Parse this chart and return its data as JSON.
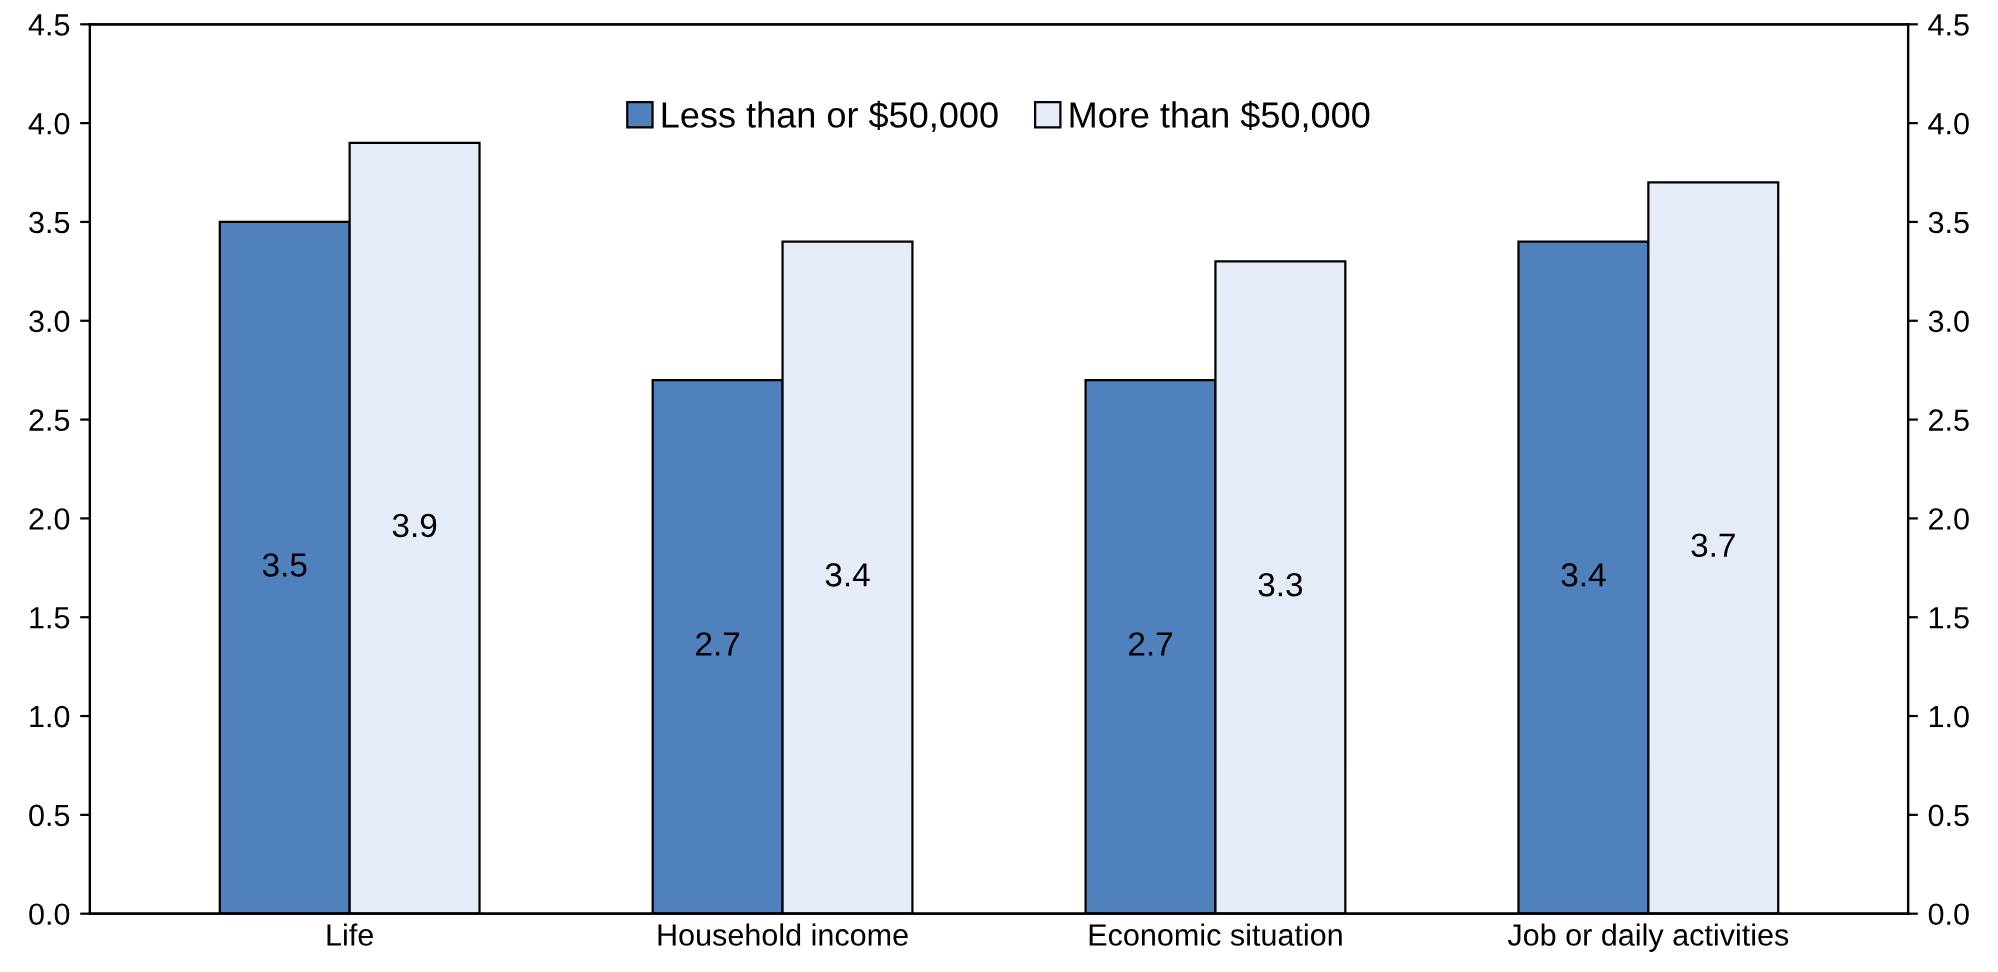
{
  "chart_data": {
    "type": "bar",
    "categories": [
      "Life",
      "Household income",
      "Economic situation",
      "Job or daily activities"
    ],
    "series": [
      {
        "name": "Less than or $50,000",
        "color": "#4f81bd",
        "values": [
          3.5,
          2.7,
          2.7,
          3.4
        ]
      },
      {
        "name": "More than $50,000",
        "color": "#e6ecf7",
        "values": [
          3.9,
          3.4,
          3.3,
          3.7
        ]
      }
    ],
    "ylim": [
      0,
      4.5
    ],
    "yticks": [
      {
        "value": 0,
        "label": "0.0"
      },
      0.5,
      {
        "value": 1,
        "label": "1.0"
      },
      1.5,
      {
        "value": 2,
        "label": "2.0"
      },
      2.5,
      {
        "value": 3,
        "label": "3.0"
      },
      3.5,
      {
        "value": 4,
        "label": "4.0"
      },
      4.5
    ],
    "y2lim": [
      0,
      4.5
    ],
    "y2ticks": [
      {
        "value": 0,
        "label": "0.0"
      },
      0.5,
      {
        "value": 1,
        "label": "1.0"
      },
      1.5,
      {
        "value": 2,
        "label": "2.0"
      },
      2.5,
      {
        "value": 3,
        "label": "3.0"
      },
      3.5,
      {
        "value": 4,
        "label": "4.0"
      },
      4.5
    ],
    "data_labels": true,
    "legend": "top",
    "grid": false
  }
}
